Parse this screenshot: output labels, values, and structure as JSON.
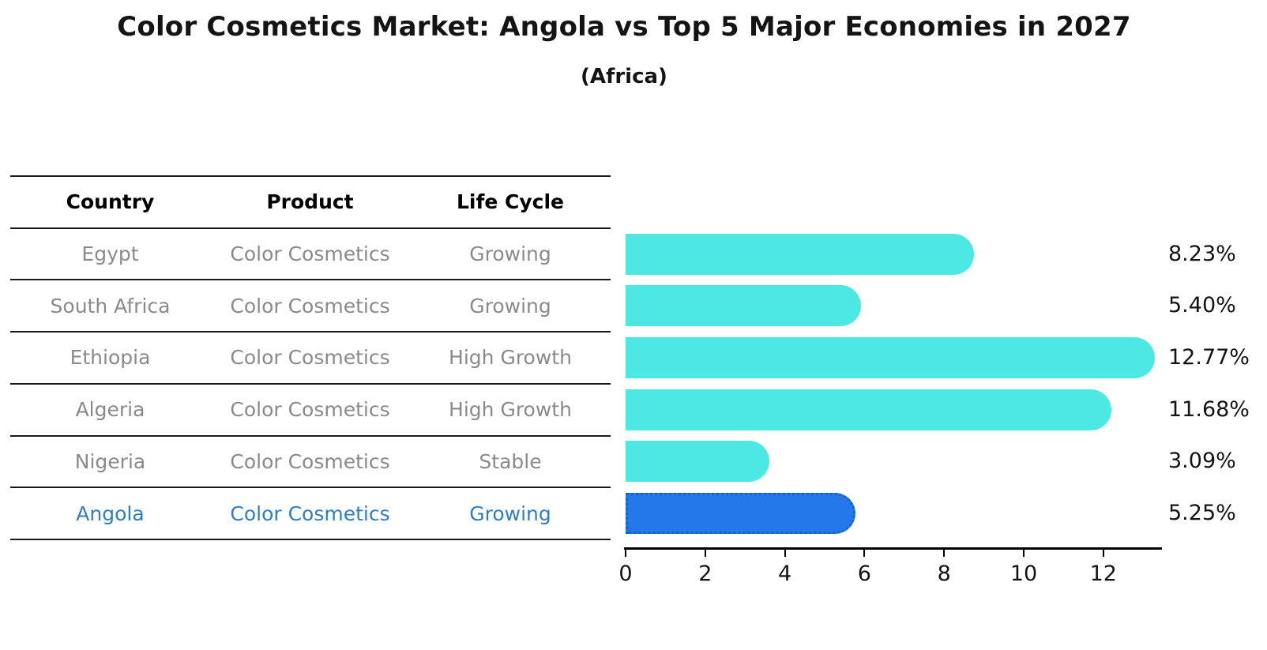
{
  "chart_data": {
    "type": "bar",
    "orientation": "horizontal",
    "title": "Color Cosmetics Market: Angola vs Top 5 Major Economies in 2027",
    "subtitle": "(Africa)",
    "categories": [
      "Egypt",
      "South Africa",
      "Ethiopia",
      "Algeria",
      "Nigeria",
      "Angola"
    ],
    "values": [
      8.23,
      5.4,
      12.77,
      11.68,
      3.09,
      5.25
    ],
    "value_labels": [
      "8.23%",
      "5.40%",
      "12.77%",
      "11.68%",
      "3.09%",
      "5.25%"
    ],
    "value_label_position": "right",
    "xticks": [
      0,
      2,
      4,
      6,
      8,
      10,
      12
    ],
    "xlim": [
      0,
      13.45
    ],
    "grid": false,
    "legend": "none",
    "bar_color": "#4BE8E4",
    "highlight_category": "Angola",
    "highlight_color": "#2478E9",
    "highlight_border_color": "#1661CF",
    "axis_color": "#000000"
  },
  "table": {
    "headers": [
      "Country",
      "Product",
      "Life Cycle"
    ],
    "rows": [
      {
        "country": "Egypt",
        "product": "Color Cosmetics",
        "life_cycle": "Growing"
      },
      {
        "country": "South Africa",
        "product": "Color Cosmetics",
        "life_cycle": "Growing"
      },
      {
        "country": "Ethiopia",
        "product": "Color Cosmetics",
        "life_cycle": "High Growth"
      },
      {
        "country": "Algeria",
        "product": "Color Cosmetics",
        "life_cycle": "High Growth"
      },
      {
        "country": "Nigeria",
        "product": "Color Cosmetics",
        "life_cycle": "Stable"
      },
      {
        "country": "Angola",
        "product": "Color Cosmetics",
        "life_cycle": "Growing"
      }
    ],
    "highlight_row": "Angola",
    "row_text_color": "#8a8a8a",
    "highlight_text_color": "#2e7ec7",
    "header_text_color": "#000000"
  }
}
